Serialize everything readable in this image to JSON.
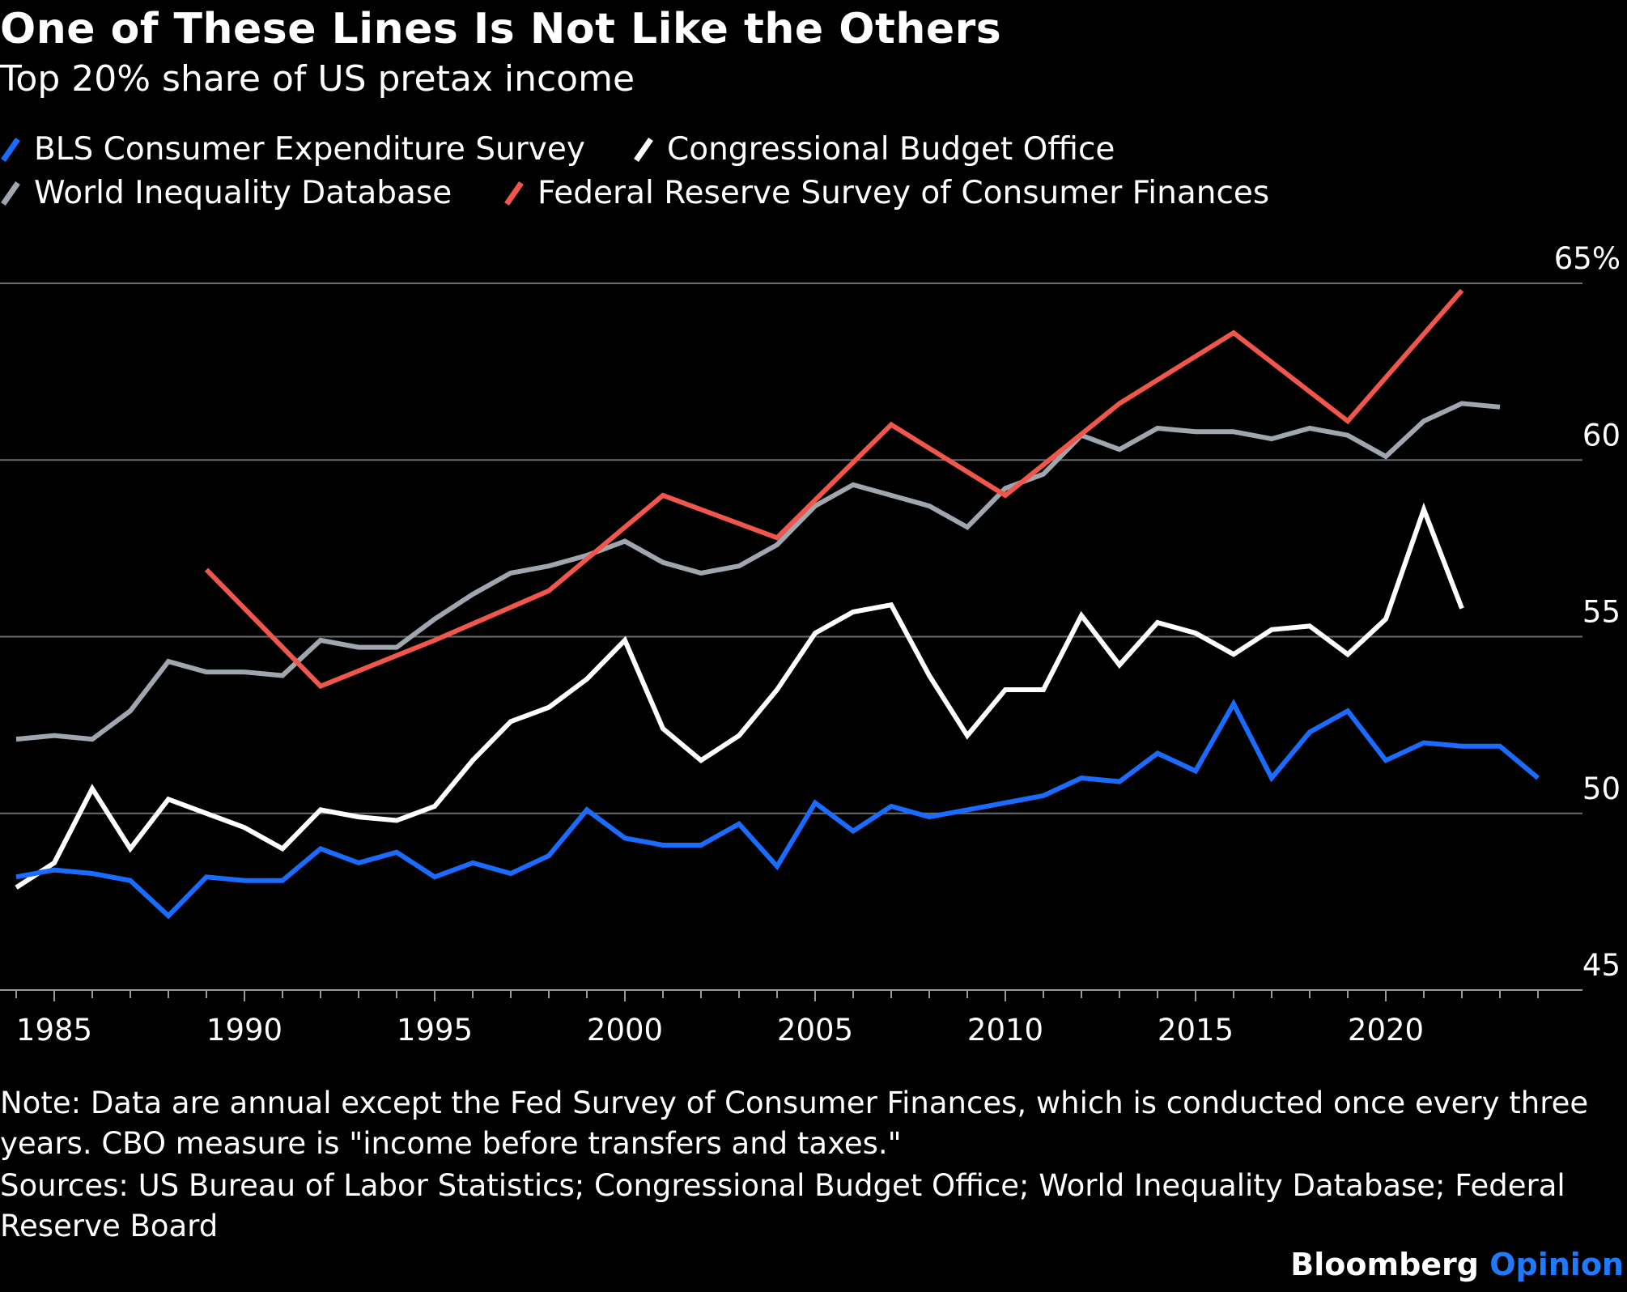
{
  "title": "One of These Lines Is Not Like the Others",
  "subtitle": "Top 20% share of US pretax income",
  "note": "Note: Data are annual except the Fed Survey of Consumer Finances, which is conducted once every three years. CBO measure is \"income before transfers and taxes.\"",
  "sources": "Sources: US Bureau of Labor Statistics; Congressional Budget Office; World Inequality Database; Federal Reserve Board",
  "brand": {
    "name": "Bloomberg",
    "section": "Opinion",
    "section_color": "#1f7aff"
  },
  "legend": [
    {
      "label": "BLS Consumer Expenditure Survey",
      "color": "#1a6bff"
    },
    {
      "label": "Congressional Budget Office",
      "color": "#ffffff"
    },
    {
      "label": "World Inequality Database",
      "color": "#a0a6b0"
    },
    {
      "label": "Federal Reserve Survey of Consumer Finances",
      "color": "#f0564a"
    }
  ],
  "chart_data": {
    "type": "line",
    "xlim": [
      1984,
      2024
    ],
    "ylim": [
      45,
      65
    ],
    "yticks": [
      45,
      50,
      55,
      60,
      65
    ],
    "ytick_labels": [
      "45",
      "50",
      "55",
      "60",
      "65%"
    ],
    "xticks": [
      1985,
      1990,
      1995,
      2000,
      2005,
      2010,
      2015,
      2020
    ],
    "xtick_labels": [
      "1985",
      "1990",
      "1995",
      "2000",
      "2005",
      "2010",
      "2015",
      "2020"
    ],
    "grid": true,
    "legend_position": "top-left",
    "series": [
      {
        "name": "BLS Consumer Expenditure Survey",
        "color": "#1a6bff",
        "x": [
          1984,
          1985,
          1986,
          1987,
          1988,
          1989,
          1990,
          1991,
          1992,
          1993,
          1994,
          1995,
          1996,
          1997,
          1998,
          1999,
          2000,
          2001,
          2002,
          2003,
          2004,
          2005,
          2006,
          2007,
          2008,
          2009,
          2010,
          2011,
          2012,
          2013,
          2014,
          2015,
          2016,
          2017,
          2018,
          2019,
          2020,
          2021,
          2022,
          2023,
          2024
        ],
        "y": [
          48.2,
          48.4,
          48.3,
          48.1,
          47.1,
          48.2,
          48.1,
          48.1,
          49.0,
          48.6,
          48.9,
          48.2,
          48.6,
          48.3,
          48.8,
          50.1,
          49.3,
          49.1,
          49.1,
          49.7,
          48.5,
          50.3,
          49.5,
          50.2,
          49.9,
          50.1,
          50.3,
          50.5,
          51.0,
          50.9,
          51.7,
          51.2,
          53.1,
          51.0,
          52.3,
          52.9,
          51.5,
          52.0,
          51.9,
          51.9,
          51.0
        ]
      },
      {
        "name": "Congressional Budget Office",
        "color": "#ffffff",
        "x": [
          1984,
          1985,
          1986,
          1987,
          1988,
          1989,
          1990,
          1991,
          1992,
          1993,
          1994,
          1995,
          1996,
          1997,
          1998,
          1999,
          2000,
          2001,
          2002,
          2003,
          2004,
          2005,
          2006,
          2007,
          2008,
          2009,
          2010,
          2011,
          2012,
          2013,
          2014,
          2015,
          2016,
          2017,
          2018,
          2019,
          2020,
          2021,
          2022
        ],
        "y": [
          47.9,
          48.6,
          50.7,
          49.0,
          50.4,
          50.0,
          49.6,
          49.0,
          50.1,
          49.9,
          49.8,
          50.2,
          51.5,
          52.6,
          53.0,
          53.8,
          54.9,
          52.4,
          51.5,
          52.2,
          53.5,
          55.1,
          55.7,
          55.9,
          53.9,
          52.2,
          53.5,
          53.5,
          55.6,
          54.2,
          55.4,
          55.1,
          54.5,
          55.2,
          55.3,
          54.5,
          55.5,
          58.6,
          55.8
        ]
      },
      {
        "name": "World Inequality Database",
        "color": "#a0a6b0",
        "x": [
          1984,
          1985,
          1986,
          1987,
          1988,
          1989,
          1990,
          1991,
          1992,
          1993,
          1994,
          1995,
          1996,
          1997,
          1998,
          1999,
          2000,
          2001,
          2002,
          2003,
          2004,
          2005,
          2006,
          2007,
          2008,
          2009,
          2010,
          2011,
          2012,
          2013,
          2014,
          2015,
          2016,
          2017,
          2018,
          2019,
          2020,
          2021,
          2022,
          2023
        ],
        "y": [
          52.1,
          52.2,
          52.1,
          52.9,
          54.3,
          54.0,
          54.0,
          53.9,
          54.9,
          54.7,
          54.7,
          55.5,
          56.2,
          56.8,
          57.0,
          57.3,
          57.7,
          57.1,
          56.8,
          57.0,
          57.6,
          58.7,
          59.3,
          59.0,
          58.7,
          58.1,
          59.2,
          59.6,
          60.7,
          60.3,
          60.9,
          60.8,
          60.8,
          60.6,
          60.9,
          60.7,
          60.1,
          61.1,
          61.6,
          61.5
        ]
      },
      {
        "name": "Federal Reserve Survey of Consumer Finances",
        "color": "#f0564a",
        "x": [
          1989,
          1992,
          1995,
          1998,
          2001,
          2004,
          2007,
          2010,
          2013,
          2016,
          2019,
          2022
        ],
        "y": [
          56.9,
          53.6,
          54.9,
          56.3,
          59.0,
          57.8,
          61.0,
          59.0,
          61.6,
          63.6,
          61.1,
          64.8
        ]
      }
    ]
  }
}
